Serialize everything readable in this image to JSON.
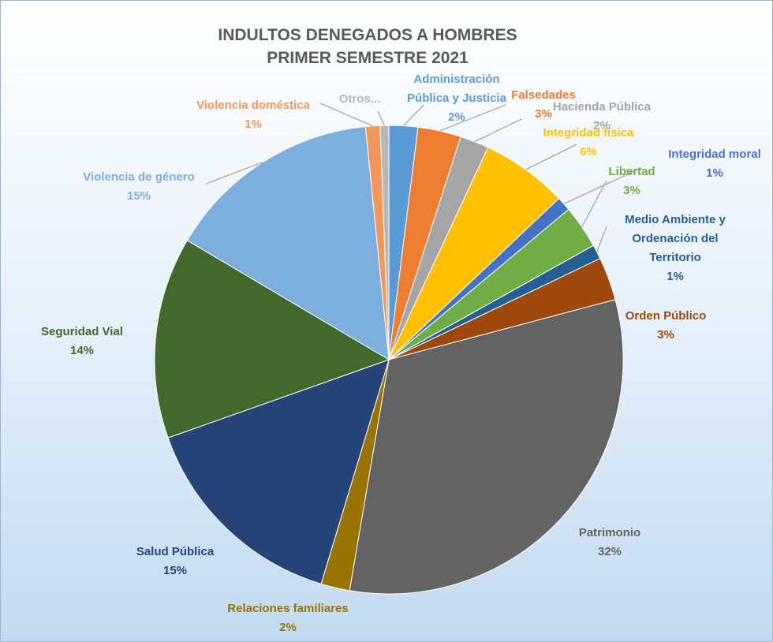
{
  "chart_data": {
    "type": "pie",
    "title": "INDULTOS DENEGADOS A HOMBRES",
    "subtitle": "PRIMER SEMESTRE 2021",
    "categories": [
      "Administración Pública y Justicia",
      "Falsedades",
      "Hacienda Pública",
      "Integridad física",
      "Integridad moral",
      "Libertad",
      "Medio Ambiente y Ordenación del Territorio",
      "Orden Público",
      "Patrimonio",
      "Relaciones familiares",
      "Salud Pública",
      "Seguridad Vial",
      "Violencia de género",
      "Violencia doméstica",
      "Otros..."
    ],
    "values": [
      2,
      3,
      2,
      6,
      1,
      3,
      1,
      3,
      32,
      2,
      15,
      14,
      15,
      1,
      0.6
    ],
    "value_labels": [
      "2%",
      "3%",
      "2%",
      "6%",
      "1%",
      "3%",
      "1%",
      "3%",
      "32%",
      "2%",
      "15%",
      "14%",
      "15%",
      "1%",
      null
    ],
    "colors": [
      "#5b9bd5",
      "#ed7d31",
      "#a5a5a5",
      "#ffc000",
      "#4472c4",
      "#70ad47",
      "#255e91",
      "#9e480e",
      "#636363",
      "#997300",
      "#264478",
      "#43682b",
      "#7cafdd",
      "#f1975a",
      "#b7b7b7"
    ]
  }
}
